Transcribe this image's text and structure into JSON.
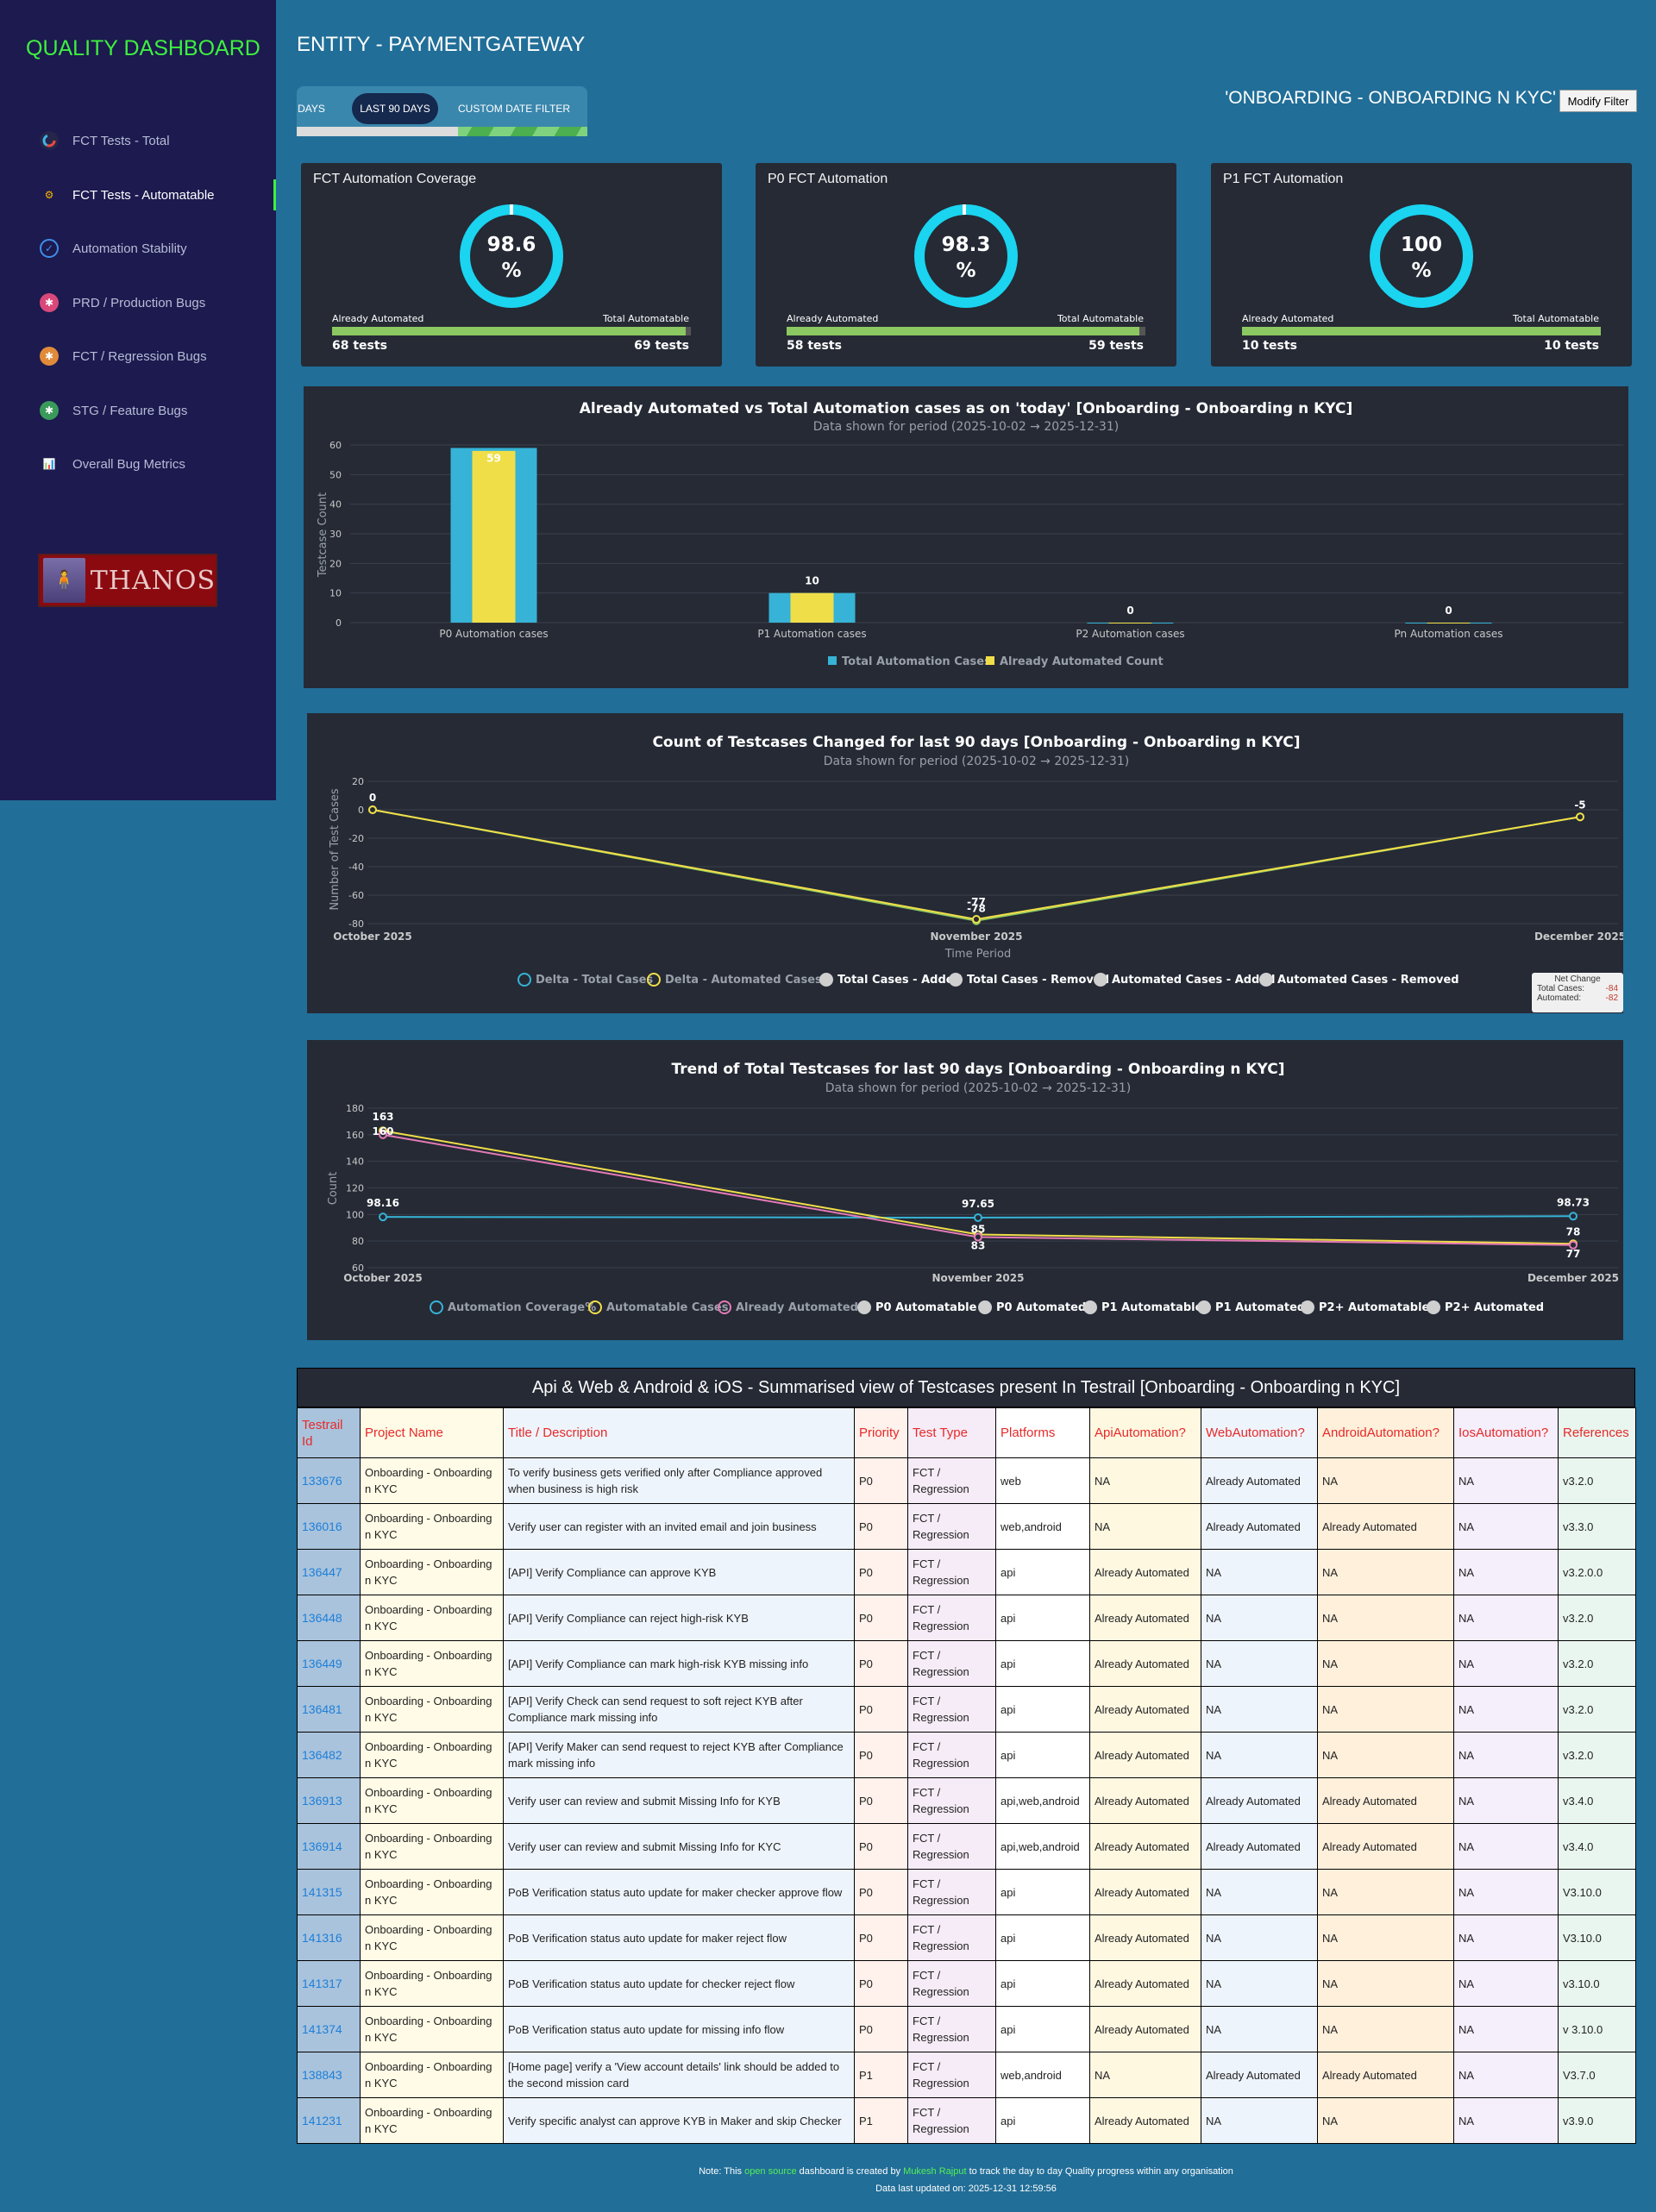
{
  "sidebar": {
    "brand": "QUALITY DASHBOARD",
    "items": [
      {
        "label": "FCT Tests - Total",
        "icon": "donut-chart-icon"
      },
      {
        "label": "FCT Tests - Automatable",
        "icon": "gears-icon"
      },
      {
        "label": "Automation Stability",
        "icon": "magnifier-icon"
      },
      {
        "label": "PRD / Production Bugs",
        "icon": "bug-red-icon"
      },
      {
        "label": "FCT / Regression Bugs",
        "icon": "bug-orange-icon"
      },
      {
        "label": "STG / Feature Bugs",
        "icon": "bug-green-icon"
      },
      {
        "label": "Overall Bug Metrics",
        "icon": "chart-search-icon"
      }
    ],
    "logo_text": "THANOS"
  },
  "header": {
    "entity_title": "ENTITY - PAYMENTGATEWAY",
    "tabs": [
      "DAYS",
      "LAST 90 DAYS",
      "CUSTOM DATE FILTER"
    ],
    "scope_title": "'ONBOARDING - ONBOARDING N KYC'",
    "modify_filter": "Modify Filter"
  },
  "cards": [
    {
      "title": "FCT Automation Coverage",
      "percent_line1": "98.6",
      "percent_line2": "%",
      "coverage": 0.986,
      "left_label": "Already Automated",
      "right_label": "Total Automatable",
      "left_count": "68 tests",
      "right_count": "69 tests"
    },
    {
      "title": "P0 FCT Automation",
      "percent_line1": "98.3",
      "percent_line2": "%",
      "coverage": 0.983,
      "left_label": "Already Automated",
      "right_label": "Total Automatable",
      "left_count": "58 tests",
      "right_count": "59 tests"
    },
    {
      "title": "P1 FCT Automation",
      "percent_line1": "100",
      "percent_line2": "%",
      "coverage": 1.0,
      "left_label": "Already Automated",
      "right_label": "Total Automatable",
      "left_count": "10 tests",
      "right_count": "10 tests"
    }
  ],
  "colors": {
    "total": "#36b3d6",
    "automated": "#f0de48",
    "pink": "#e57ab6",
    "donut": "#1ad4f0",
    "bar_fill": "#8cc861"
  },
  "chart_data": [
    {
      "type": "bar",
      "title": "Already Automated vs Total Automation cases as on 'today' [Onboarding - Onboarding n KYC]",
      "subtitle": "Data shown for period (2025-10-02 → 2025-12-31)",
      "ylabel": "Testcase Count",
      "ylim": [
        0,
        60
      ],
      "yticks": [
        0,
        10,
        20,
        30,
        40,
        50,
        60
      ],
      "categories": [
        "P0 Automation cases",
        "P1 Automation cases",
        "P2 Automation cases",
        "Pn Automation cases"
      ],
      "series": [
        {
          "name": "Total Automation Cases",
          "values": [
            59,
            10,
            0,
            0
          ]
        },
        {
          "name": "Already Automated Count",
          "values": [
            58,
            10,
            0,
            0
          ]
        }
      ],
      "data_labels": [
        "59",
        "10",
        "0",
        "0"
      ],
      "legend": "bottom"
    },
    {
      "type": "line",
      "title": "Count of Testcases Changed for last 90 days [Onboarding - Onboarding n KYC]",
      "subtitle": "Data shown for period (2025-10-02 → 2025-12-31)",
      "xlabel": "Time Period",
      "ylabel": "Number of Test Cases",
      "ylim": [
        -80,
        20
      ],
      "yticks": [
        20,
        0,
        -20,
        -40,
        -60,
        -80
      ],
      "categories": [
        "October 2025",
        "November 2025",
        "December 2025"
      ],
      "series": [
        {
          "name": "Delta - Total Cases",
          "values": [
            0,
            -78,
            -5
          ]
        },
        {
          "name": "Delta - Automated Cases",
          "values": [
            0,
            -77,
            -5
          ]
        }
      ],
      "data_labels": [
        [
          "0",
          "-78",
          "-5"
        ],
        [
          "",
          "-77",
          ""
        ]
      ],
      "legend_items": [
        "Delta - Total Cases",
        "Delta - Automated Cases",
        "Total Cases - Added",
        "Total Cases - Removed",
        "Automated Cases - Added",
        "Automated Cases - Removed"
      ],
      "legend": "bottom",
      "net_change": {
        "title": "Net Change",
        "total_label": "Total Cases:",
        "total_value": "-84",
        "automated_label": "Automated:",
        "automated_value": "-82"
      }
    },
    {
      "type": "line",
      "title": "Trend of Total Testcases for last 90 days [Onboarding - Onboarding n KYC]",
      "subtitle": "Data shown for period (2025-10-02 → 2025-12-31)",
      "ylabel": "Count",
      "ylim": [
        60,
        180
      ],
      "yticks": [
        180,
        160,
        140,
        120,
        100,
        80,
        60
      ],
      "categories": [
        "October 2025",
        "November 2025",
        "December 2025"
      ],
      "series": [
        {
          "name": "Automation Coverage%",
          "values": [
            98.16,
            97.65,
            98.73
          ]
        },
        {
          "name": "Automatable Cases",
          "values": [
            163,
            85,
            78
          ]
        },
        {
          "name": "Already Automated",
          "values": [
            160,
            83,
            77
          ]
        }
      ],
      "data_labels": [
        [
          "98.16",
          "97.65",
          "98.73"
        ],
        [
          "163",
          "85",
          "78"
        ],
        [
          "160",
          "83",
          "77"
        ]
      ],
      "legend_items": [
        "Automation Coverage%",
        "Automatable Cases",
        "Already Automated",
        "P0 Automatable",
        "P0 Automated",
        "P1 Automatable",
        "P1 Automated",
        "P2+ Automatable",
        "P2+ Automated"
      ],
      "legend": "bottom"
    }
  ],
  "table": {
    "title": "Api & Web & Android & iOS - Summarised view of Testcases present In Testrail [Onboarding - Onboarding n KYC]",
    "headers": [
      "Testrail Id",
      "Project Name",
      "Title / Description",
      "Priority",
      "Test Type",
      "Platforms",
      "ApiAutomation?",
      "WebAutomation?",
      "AndroidAutomation?",
      "IosAutomation?",
      "References"
    ],
    "rows": [
      [
        "133676",
        "Onboarding - Onboarding n KYC",
        "To verify business gets verified only after Compliance approved when business is high risk",
        "P0",
        "FCT / Regression",
        "web",
        "NA",
        "Already Automated",
        "NA",
        "NA",
        "v3.2.0"
      ],
      [
        "136016",
        "Onboarding - Onboarding n KYC",
        "Verify user can register with an invited email and join business",
        "P0",
        "FCT / Regression",
        "web,android",
        "NA",
        "Already Automated",
        "Already Automated",
        "NA",
        "v3.3.0"
      ],
      [
        "136447",
        "Onboarding - Onboarding n KYC",
        "[API] Verify Compliance can approve KYB",
        "P0",
        "FCT / Regression",
        "api",
        "Already Automated",
        "NA",
        "NA",
        "NA",
        "v3.2.0.0"
      ],
      [
        "136448",
        "Onboarding - Onboarding n KYC",
        "[API] Verify Compliance can reject high-risk KYB",
        "P0",
        "FCT / Regression",
        "api",
        "Already Automated",
        "NA",
        "NA",
        "NA",
        "v3.2.0"
      ],
      [
        "136449",
        "Onboarding - Onboarding n KYC",
        "[API] Verify Compliance can mark high-risk KYB missing info",
        "P0",
        "FCT / Regression",
        "api",
        "Already Automated",
        "NA",
        "NA",
        "NA",
        "v3.2.0"
      ],
      [
        "136481",
        "Onboarding - Onboarding n KYC",
        "[API] Verify Check can send request to soft reject KYB after Compliance mark missing info",
        "P0",
        "FCT / Regression",
        "api",
        "Already Automated",
        "NA",
        "NA",
        "NA",
        "v3.2.0"
      ],
      [
        "136482",
        "Onboarding - Onboarding n KYC",
        "[API] Verify Maker can send request to reject KYB after Compliance mark missing info",
        "P0",
        "FCT / Regression",
        "api",
        "Already Automated",
        "NA",
        "NA",
        "NA",
        "v3.2.0"
      ],
      [
        "136913",
        "Onboarding - Onboarding n KYC",
        "Verify user can review and submit Missing Info for KYB",
        "P0",
        "FCT / Regression",
        "api,web,android",
        "Already Automated",
        "Already Automated",
        "Already Automated",
        "NA",
        "v3.4.0"
      ],
      [
        "136914",
        "Onboarding - Onboarding n KYC",
        "Verify user can review and submit Missing Info for KYC",
        "P0",
        "FCT / Regression",
        "api,web,android",
        "Already Automated",
        "Already Automated",
        "Already Automated",
        "NA",
        "v3.4.0"
      ],
      [
        "141315",
        "Onboarding - Onboarding n KYC",
        "PoB Verification status auto update for maker checker approve flow",
        "P0",
        "FCT / Regression",
        "api",
        "Already Automated",
        "NA",
        "NA",
        "NA",
        "V3.10.0"
      ],
      [
        "141316",
        "Onboarding - Onboarding n KYC",
        "PoB Verification status auto update for maker reject flow",
        "P0",
        "FCT / Regression",
        "api",
        "Already Automated",
        "NA",
        "NA",
        "NA",
        "V3.10.0"
      ],
      [
        "141317",
        "Onboarding - Onboarding n KYC",
        "PoB Verification status auto update for checker reject flow",
        "P0",
        "FCT / Regression",
        "api",
        "Already Automated",
        "NA",
        "NA",
        "NA",
        "v3.10.0"
      ],
      [
        "141374",
        "Onboarding - Onboarding n KYC",
        "PoB Verification status auto update for missing info flow",
        "P0",
        "FCT / Regression",
        "api",
        "Already Automated",
        "NA",
        "NA",
        "NA",
        "v 3.10.0"
      ],
      [
        "138843",
        "Onboarding - Onboarding n KYC",
        "[Home page] verify a 'View account details' link should be added to the second mission card",
        "P1",
        "FCT / Regression",
        "web,android",
        "NA",
        "Already Automated",
        "Already Automated",
        "NA",
        "V3.7.0"
      ],
      [
        "141231",
        "Onboarding - Onboarding n KYC",
        "Verify specific analyst can approve KYB in Maker and skip Checker",
        "P1",
        "FCT / Regression",
        "api",
        "Already Automated",
        "NA",
        "NA",
        "NA",
        "v3.9.0"
      ]
    ]
  },
  "footer": {
    "note_prefix": "Note: This ",
    "note_link1": "open source",
    "note_mid": " dashboard is created by ",
    "note_link2": "Mukesh Rajput",
    "note_suffix": " to track the day to day Quality progress within any organisation",
    "updated": "Data last updated on: 2025-12-31 12:59:56"
  }
}
